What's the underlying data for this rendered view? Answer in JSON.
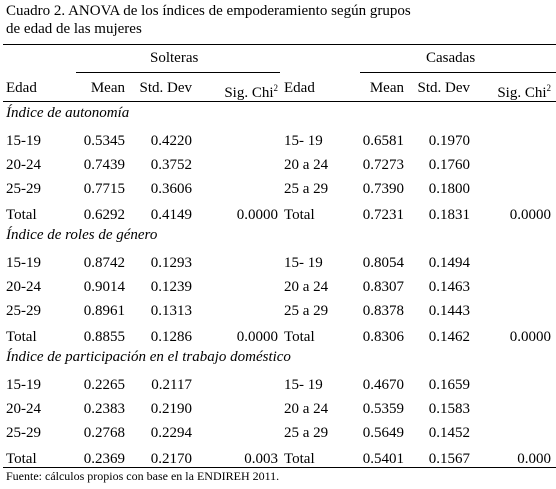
{
  "header": {
    "title": [
      "Cuadro 2. ANOVA de los índices de empoderamiento según grupos",
      "de edad de las mujeres"
    ]
  },
  "table": {
    "groups": [
      "Solteras",
      "Casadas"
    ],
    "columns": [
      {
        "text": "Edad"
      },
      {
        "text": "Mean"
      },
      {
        "text": "Std. Dev"
      },
      {
        "text": "Sig. Chi",
        "sup": "2"
      },
      {
        "text": "Edad"
      },
      {
        "text": "Mean"
      },
      {
        "text": "Std. Dev"
      },
      {
        "text": "Sig. Chi",
        "sup": "2"
      }
    ],
    "sections": [
      {
        "title": "Índice de autonomía",
        "rows": [
          [
            "15-19",
            "0.5345",
            "0.4220",
            "",
            "15- 19",
            "0.6581",
            "0.1970",
            ""
          ],
          [
            "20-24",
            "0.7439",
            "0.3752",
            "",
            "20 a 24",
            "0.7273",
            "0.1760",
            ""
          ],
          [
            "25-29",
            "0.7715",
            "0.3606",
            "",
            "25 a 29",
            "0.7390",
            "0.1800",
            ""
          ],
          [
            "Total",
            "0.6292",
            "0.4149",
            "0.0000",
            "Total",
            "0.7231",
            "0.1831",
            "0.0000"
          ]
        ]
      },
      {
        "title": "Índice de roles de género",
        "rows": [
          [
            "15-19",
            "0.8742",
            "0.1293",
            "",
            "15- 19",
            "0.8054",
            "0.1494",
            ""
          ],
          [
            "20-24",
            "0.9014",
            "0.1239",
            "",
            "20 a 24",
            "0.8307",
            "0.1463",
            ""
          ],
          [
            "25-29",
            "0.8961",
            "0.1313",
            "",
            "25 a 29",
            "0.8378",
            "0.1443",
            ""
          ],
          [
            "Total",
            "0.8855",
            "0.1286",
            "0.0000",
            "Total",
            "0.8306",
            "0.1462",
            "0.0000"
          ]
        ]
      },
      {
        "title": "Índice de participación en el trabajo doméstico",
        "rows": [
          [
            "15-19",
            "0.2265",
            "0.2117",
            "",
            "15- 19",
            "0.4670",
            "0.1659",
            ""
          ],
          [
            "20-24",
            "0.2383",
            "0.2190",
            "",
            "20 a 24",
            "0.5359",
            "0.1583",
            ""
          ],
          [
            "25-29",
            "0.2768",
            "0.2294",
            "",
            "25 a 29",
            "0.5649",
            "0.1452",
            ""
          ],
          [
            "Total",
            "0.2369",
            "0.2170",
            "0.003",
            "Total",
            "0.5401",
            "0.1567",
            "0.000"
          ]
        ]
      }
    ]
  },
  "footer": {
    "source": "Fuente: cálculos propios con base en la ENDIREH 2011."
  }
}
